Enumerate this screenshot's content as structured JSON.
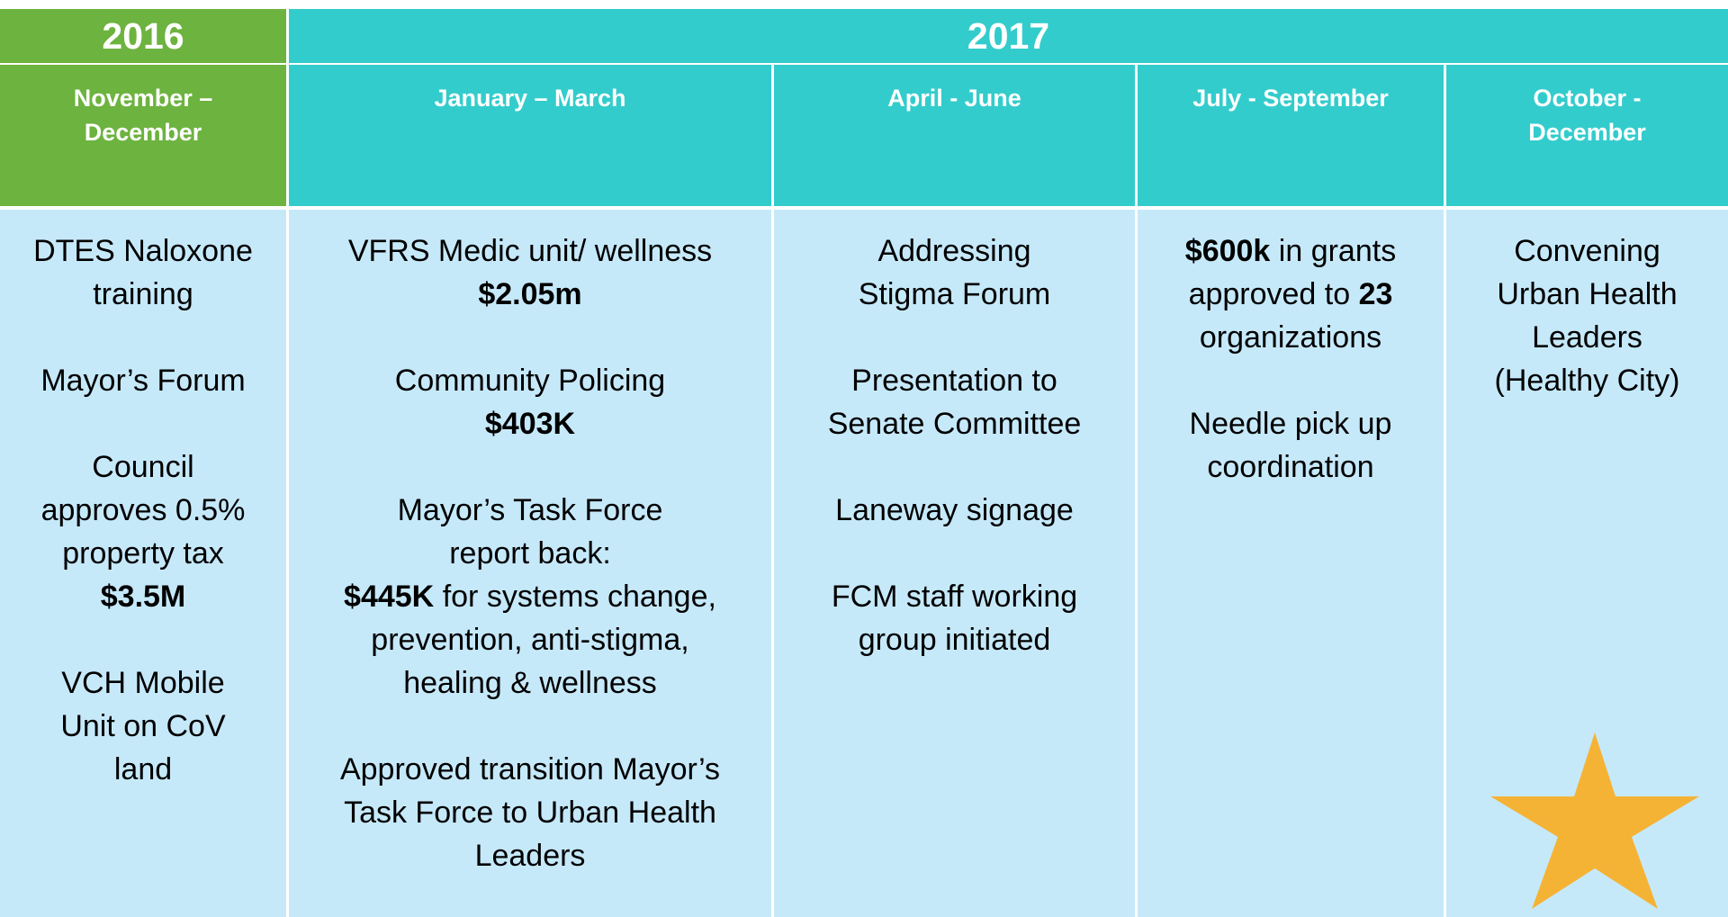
{
  "header": {
    "years": [
      {
        "label": "2016",
        "color": "#6db33f",
        "span": 1
      },
      {
        "label": "2017",
        "color": "#33cccc",
        "span": 4
      }
    ]
  },
  "columns": [
    {
      "period": "November – December",
      "color": "#6db33f",
      "items": [
        {
          "lines": [
            "DTES Naloxone",
            "training"
          ]
        },
        {
          "lines": [
            "Mayor’s Forum"
          ]
        },
        {
          "lines": [
            "Council",
            "approves 0.5%",
            "property tax",
            [
              {
                "text": "$3.5M",
                "bold": true
              }
            ]
          ]
        },
        {
          "lines": [
            "VCH Mobile",
            "Unit on CoV",
            "land"
          ]
        }
      ]
    },
    {
      "period": "January – March",
      "color": "#33cccc",
      "items": [
        {
          "lines": [
            "VFRS Medic unit/ wellness",
            [
              {
                "text": "$2.05m",
                "bold": true
              }
            ]
          ]
        },
        {
          "lines": [
            "Community Policing",
            [
              {
                "text": "$403K",
                "bold": true
              }
            ]
          ]
        },
        {
          "lines": [
            "Mayor’s Task Force",
            "report back:",
            [
              {
                "text": "$445K",
                "bold": true
              },
              {
                "text": " for systems change,",
                "bold": false
              }
            ],
            "prevention, anti-stigma,",
            "healing & wellness"
          ]
        },
        {
          "lines": [
            "Approved transition Mayor’s",
            "Task Force to Urban Health",
            "Leaders"
          ]
        }
      ]
    },
    {
      "period": "April - June",
      "color": "#33cccc",
      "items": [
        {
          "lines": [
            "Addressing",
            "Stigma Forum"
          ]
        },
        {
          "lines": [
            "Presentation to",
            "Senate Committee"
          ]
        },
        {
          "lines": [
            "Laneway signage"
          ]
        },
        {
          "lines": [
            "FCM staff working",
            "group initiated"
          ]
        }
      ]
    },
    {
      "period": "July - September",
      "color": "#33cccc",
      "items": [
        {
          "lines": [
            [
              {
                "text": "$600k",
                "bold": true
              },
              {
                "text": " in grants",
                "bold": false
              }
            ],
            [
              {
                "text": "approved to ",
                "bold": false
              },
              {
                "text": "23",
                "bold": true
              }
            ],
            "organizations"
          ]
        },
        {
          "lines": [
            "Needle pick up",
            "coordination"
          ]
        }
      ]
    },
    {
      "period": "October - December",
      "color": "#33cccc",
      "items": [
        {
          "lines": [
            "Convening",
            "Urban Health",
            "Leaders",
            "(Healthy City)"
          ]
        }
      ]
    }
  ]
}
